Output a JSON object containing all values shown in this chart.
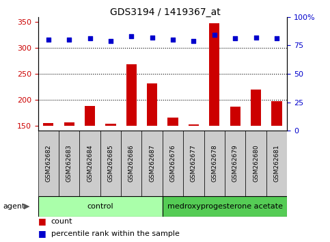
{
  "title": "GDS3194 / 1419367_at",
  "samples": [
    "GSM262682",
    "GSM262683",
    "GSM262684",
    "GSM262685",
    "GSM262686",
    "GSM262687",
    "GSM262676",
    "GSM262677",
    "GSM262678",
    "GSM262679",
    "GSM262680",
    "GSM262681"
  ],
  "counts": [
    155,
    156,
    188,
    154,
    268,
    231,
    165,
    152,
    348,
    186,
    219,
    197
  ],
  "percentile_ranks": [
    80,
    80,
    81,
    79,
    83,
    82,
    80,
    79,
    84,
    81,
    82,
    81
  ],
  "n_control": 6,
  "n_treatment": 6,
  "ylim_left": [
    140,
    360
  ],
  "ylim_right": [
    0,
    100
  ],
  "yticks_left": [
    150,
    200,
    250,
    300,
    350
  ],
  "yticks_right": [
    0,
    25,
    50,
    75,
    100
  ],
  "bar_color": "#cc0000",
  "dot_color": "#0000cc",
  "control_bg": "#aaffaa",
  "treatment_bg": "#55cc55",
  "sample_bg": "#cccccc",
  "agent_label": "agent",
  "control_label": "control",
  "treatment_label": "medroxyprogesterone acetate",
  "legend_count": "count",
  "legend_percentile": "percentile rank within the sample",
  "grid_lines": [
    200,
    250,
    300
  ]
}
